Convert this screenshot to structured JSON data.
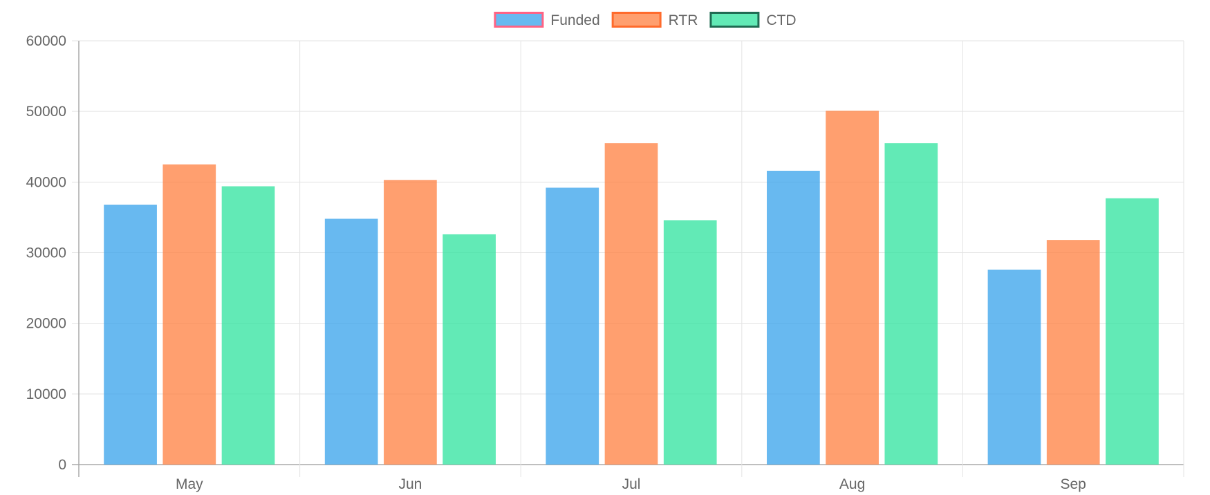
{
  "chart_data": {
    "type": "bar",
    "categories": [
      "May",
      "Jun",
      "Jul",
      "Aug",
      "Sep"
    ],
    "series": [
      {
        "name": "Funded",
        "values": [
          36800,
          34800,
          39200,
          41600,
          27600
        ],
        "fill": "#36a2eb",
        "border": "#ff6384"
      },
      {
        "name": "RTR",
        "values": [
          42500,
          40300,
          45500,
          50100,
          31800
        ],
        "fill": "#ff7f3f",
        "border": "#ff6b2c"
      },
      {
        "name": "CTD",
        "values": [
          39400,
          32600,
          34600,
          45500,
          37700
        ],
        "fill": "#2ee39d",
        "border": "#1f6b52"
      }
    ],
    "y_ticks": [
      "0",
      "10000",
      "20000",
      "30000",
      "40000",
      "50000",
      "60000"
    ],
    "ylim": [
      0,
      60000
    ],
    "grid": true,
    "legend_position": "top-center",
    "title": "",
    "xlabel": "",
    "ylabel": ""
  }
}
